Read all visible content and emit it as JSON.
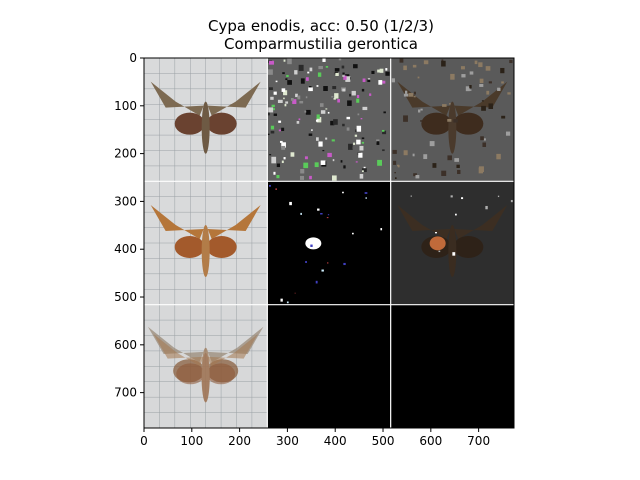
{
  "chart_data": {
    "type": "image-grid",
    "title_line1": "Cypa enodis, acc: 0.50 (1/2/3)",
    "title_line2": "Comparmustilia gerontica",
    "xlim": [
      0,
      774
    ],
    "ylim": [
      774,
      0
    ],
    "x_ticks": [
      0,
      100,
      200,
      300,
      400,
      500,
      600,
      700
    ],
    "y_ticks": [
      0,
      100,
      200,
      300,
      400,
      500,
      600,
      700
    ],
    "grid": {
      "rows": 3,
      "cols": 3
    },
    "panels": [
      {
        "row": 0,
        "col": 0,
        "kind": "photo-light"
      },
      {
        "row": 0,
        "col": 1,
        "kind": "noise-gray"
      },
      {
        "row": 0,
        "col": 2,
        "kind": "masked-gray"
      },
      {
        "row": 1,
        "col": 0,
        "kind": "photo-light"
      },
      {
        "row": 1,
        "col": 1,
        "kind": "noise-black"
      },
      {
        "row": 1,
        "col": 2,
        "kind": "masked-dark"
      },
      {
        "row": 2,
        "col": 0,
        "kind": "photo-blend"
      },
      {
        "row": 2,
        "col": 1,
        "kind": "black"
      },
      {
        "row": 2,
        "col": 2,
        "kind": "black"
      }
    ]
  }
}
